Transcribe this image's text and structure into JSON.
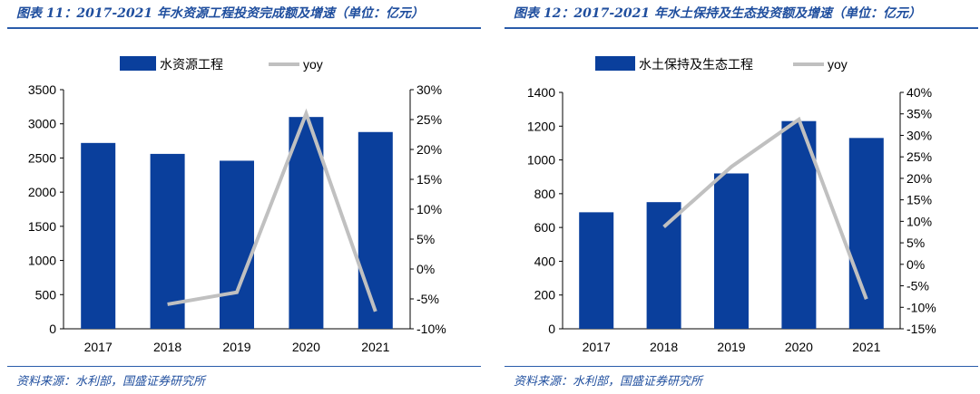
{
  "chart_data": [
    {
      "type": "bar",
      "title": "图表 11：2017-2021 年水资源工程投资完成额及增速（单位：亿元）",
      "categories": [
        "2017",
        "2018",
        "2019",
        "2020",
        "2021"
      ],
      "series": [
        {
          "name": "水资源工程",
          "type": "bar",
          "axis": "left",
          "values": [
            2720,
            2560,
            2460,
            3100,
            2880
          ]
        },
        {
          "name": "yoy",
          "type": "line",
          "axis": "right",
          "values": [
            null,
            -5.9,
            -3.9,
            26.0,
            -7.1
          ]
        }
      ],
      "ylim": [
        0,
        3500
      ],
      "yticks": [
        "0",
        "500",
        "1000",
        "1500",
        "2000",
        "2500",
        "3000",
        "3500"
      ],
      "y2lim": [
        -10,
        30
      ],
      "y2ticks": [
        "-10%",
        "-5%",
        "0%",
        "5%",
        "10%",
        "15%",
        "20%",
        "25%",
        "30%"
      ],
      "legend": "top",
      "source": "资料来源：水利部，国盛证券研究所"
    },
    {
      "type": "bar",
      "title": "图表 12：2017-2021 年水土保持及生态投资额及增速（单位：亿元）",
      "categories": [
        "2017",
        "2018",
        "2019",
        "2020",
        "2021"
      ],
      "series": [
        {
          "name": "水土保持及生态工程",
          "type": "bar",
          "axis": "left",
          "values": [
            690,
            750,
            920,
            1230,
            1130
          ]
        },
        {
          "name": "yoy",
          "type": "line",
          "axis": "right",
          "values": [
            null,
            8.7,
            22.7,
            33.7,
            -8.1
          ]
        }
      ],
      "ylim": [
        0,
        1400
      ],
      "yticks": [
        "0",
        "200",
        "400",
        "600",
        "800",
        "1000",
        "1200",
        "1400"
      ],
      "y2lim": [
        -15,
        40
      ],
      "y2ticks": [
        "-15%",
        "-10%",
        "-5%",
        "0%",
        "5%",
        "10%",
        "15%",
        "20%",
        "25%",
        "30%",
        "35%",
        "40%"
      ],
      "legend": "top",
      "source": "资料来源：水利部，国盛证券研究所"
    }
  ],
  "colors": {
    "bar": "#0a3f9c",
    "line": "#c0c0c0"
  }
}
